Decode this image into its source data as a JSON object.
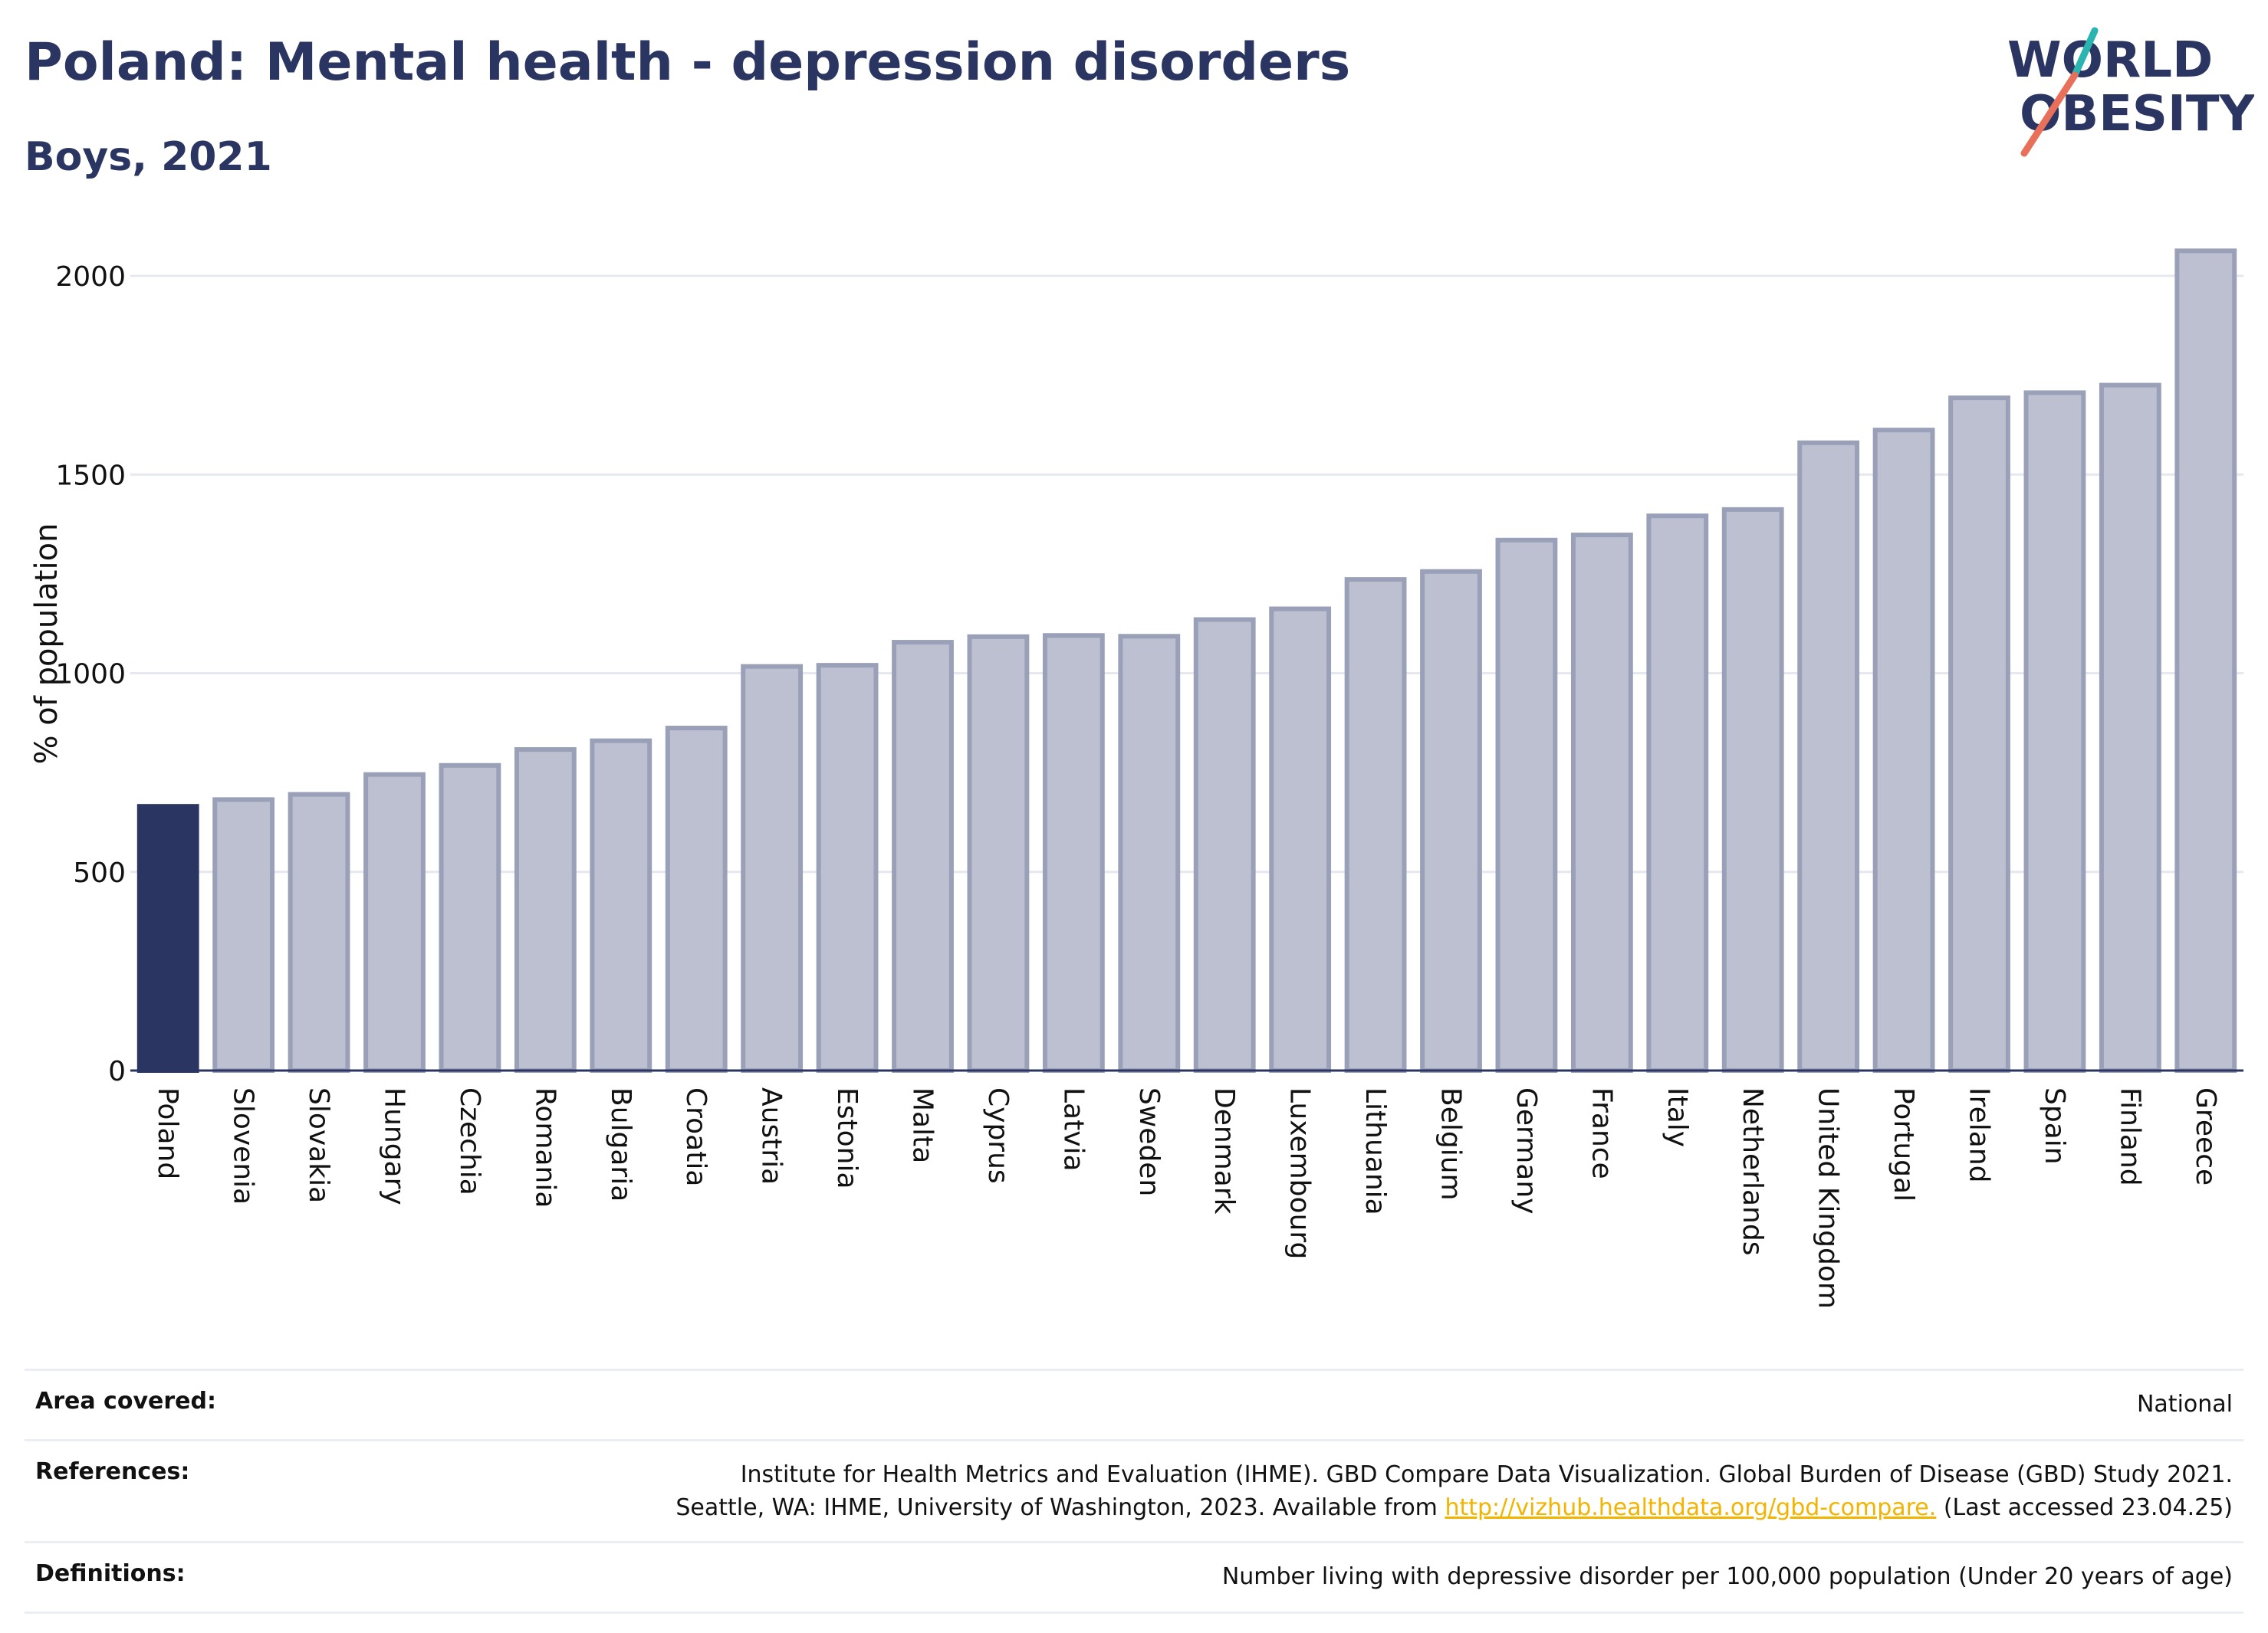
{
  "title": "Poland: Mental health - depression disorders",
  "subtitle": "Boys, 2021",
  "logo": {
    "line1": "WORLD",
    "line2": "OBESITY",
    "accent_colors": [
      "#2bb5b0",
      "#e8705a"
    ]
  },
  "colors": {
    "highlight": "#2a3561",
    "bar": "#bcc0d0",
    "bar_border": "#9aa0b8",
    "gridline": "#e6e8ef",
    "axis": "#2a3561"
  },
  "chart_data": {
    "type": "bar",
    "ylabel": "% of population",
    "ylim": [
      0,
      2100
    ],
    "yticks": [
      0,
      500,
      1000,
      1500,
      2000
    ],
    "grid": true,
    "highlight": "Poland",
    "categories": [
      "Poland",
      "Slovenia",
      "Slovakia",
      "Hungary",
      "Czechia",
      "Romania",
      "Bulgaria",
      "Croatia",
      "Austria",
      "Estonia",
      "Malta",
      "Cyprus",
      "Latvia",
      "Sweden",
      "Denmark",
      "Luxembourg",
      "Lithuania",
      "Belgium",
      "Germany",
      "France",
      "Italy",
      "Netherlands",
      "United Kingdom",
      "Portugal",
      "Ireland",
      "Spain",
      "Finland",
      "Greece"
    ],
    "values": [
      665,
      682,
      695,
      745,
      768,
      808,
      830,
      862,
      1017,
      1020,
      1078,
      1092,
      1095,
      1093,
      1135,
      1162,
      1236,
      1256,
      1335,
      1348,
      1396,
      1412,
      1580,
      1612,
      1693,
      1706,
      1725,
      2063
    ]
  },
  "info": {
    "area_covered": {
      "label": "Area covered:",
      "value": "National"
    },
    "references": {
      "label": "References:",
      "line1": "Institute for Health Metrics and Evaluation (IHME). GBD Compare Data Visualization. Global Burden of Disease (GBD) Study 2021.",
      "line2_prefix": "Seattle, WA: IHME, University of Washington, 2023. Available from ",
      "link": "http://vizhub.healthdata.org/gbd-compare.",
      "line2_suffix": " (Last accessed 23.04.25)"
    },
    "definitions": {
      "label": "Definitions:",
      "value": "Number living with depressive disorder per 100,000 population (Under 20 years of age)"
    }
  }
}
